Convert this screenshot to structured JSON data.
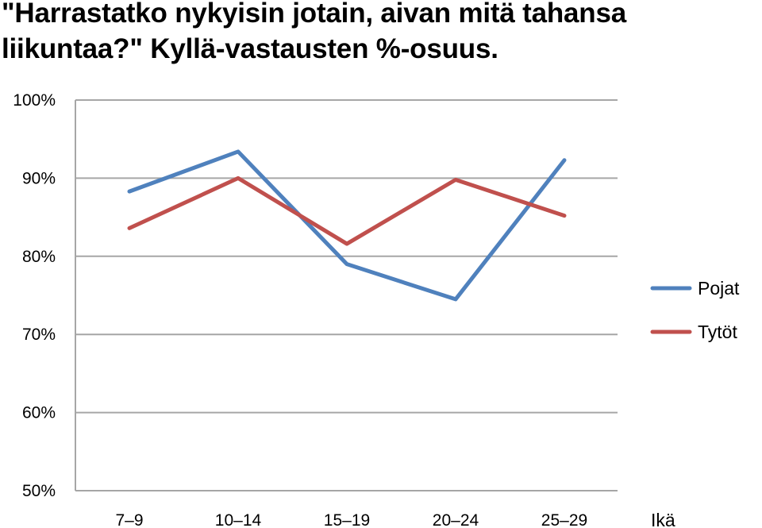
{
  "chart_data": {
    "type": "line",
    "title": "\"Harrastatko nykyisin jotain, aivan mitä tahansa liikuntaa?\" Kyllä-vastausten %-osuus.",
    "xlabel": "Ikä",
    "ylabel": "",
    "categories": [
      "7–9",
      "10–14",
      "15–19",
      "20–24",
      "25–29"
    ],
    "ylim": [
      50,
      100
    ],
    "yticks": [
      50,
      60,
      70,
      80,
      90,
      100
    ],
    "ytick_labels": [
      "50%",
      "60%",
      "70%",
      "80%",
      "90%",
      "100%"
    ],
    "grid": true,
    "legend": "right",
    "series": [
      {
        "name": "Pojat",
        "color": "#4f81bd",
        "values": [
          88.3,
          93.4,
          79.0,
          74.5,
          92.3
        ]
      },
      {
        "name": "Tytöt",
        "color": "#c0504d",
        "values": [
          83.6,
          90.0,
          81.6,
          89.8,
          85.2
        ]
      }
    ]
  }
}
